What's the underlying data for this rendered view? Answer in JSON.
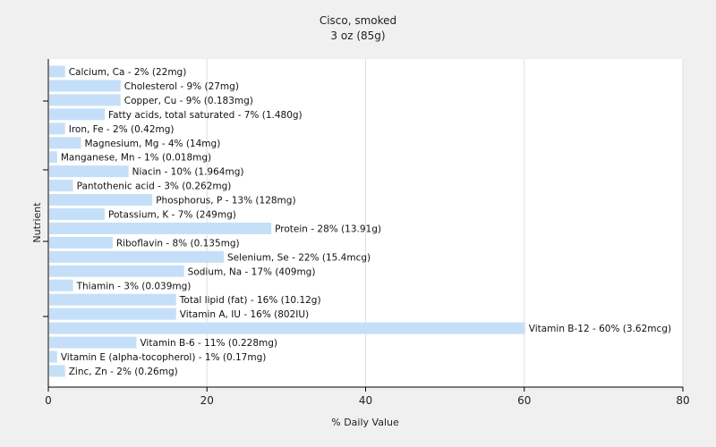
{
  "chart_data": {
    "type": "bar",
    "orientation": "horizontal",
    "title": "Cisco, smoked",
    "subtitle": "3 oz (85g)",
    "xlabel": "% Daily Value",
    "ylabel": "Nutrient",
    "xlim": [
      0,
      80
    ],
    "xticks": [
      0,
      20,
      40,
      60,
      80
    ],
    "grid": true,
    "bar_color": "#c6dff8",
    "categories": [
      "Calcium, Ca",
      "Cholesterol",
      "Copper, Cu",
      "Fatty acids, total saturated",
      "Iron, Fe",
      "Magnesium, Mg",
      "Manganese, Mn",
      "Niacin",
      "Pantothenic acid",
      "Phosphorus, P",
      "Potassium, K",
      "Protein",
      "Riboflavin",
      "Selenium, Se",
      "Sodium, Na",
      "Thiamin",
      "Total lipid (fat)",
      "Vitamin A, IU",
      "Vitamin B-12",
      "Vitamin B-6",
      "Vitamin E (alpha-tocopherol)",
      "Zinc, Zn"
    ],
    "values": [
      2,
      9,
      9,
      7,
      2,
      4,
      1,
      10,
      3,
      13,
      7,
      28,
      8,
      22,
      17,
      3,
      16,
      16,
      60,
      11,
      1,
      2
    ],
    "labels": [
      "Calcium, Ca - 2% (22mg)",
      "Cholesterol - 9% (27mg)",
      "Copper, Cu - 9% (0.183mg)",
      "Fatty acids, total saturated - 7% (1.480g)",
      "Iron, Fe - 2% (0.42mg)",
      "Magnesium, Mg - 4% (14mg)",
      "Manganese, Mn - 1% (0.018mg)",
      "Niacin - 10% (1.964mg)",
      "Pantothenic acid - 3% (0.262mg)",
      "Phosphorus, P - 13% (128mg)",
      "Potassium, K - 7% (249mg)",
      "Protein - 28% (13.91g)",
      "Riboflavin - 8% (0.135mg)",
      "Selenium, Se - 22% (15.4mcg)",
      "Sodium, Na - 17% (409mg)",
      "Thiamin - 3% (0.039mg)",
      "Total lipid (fat) - 16% (10.12g)",
      "Vitamin A, IU - 16% (802IU)",
      "Vitamin B-12 - 60% (3.62mcg)",
      "Vitamin B-6 - 11% (0.228mg)",
      "Vitamin E (alpha-tocopherol) - 1% (0.17mg)",
      "Zinc, Zn - 2% (0.26mg)"
    ]
  }
}
